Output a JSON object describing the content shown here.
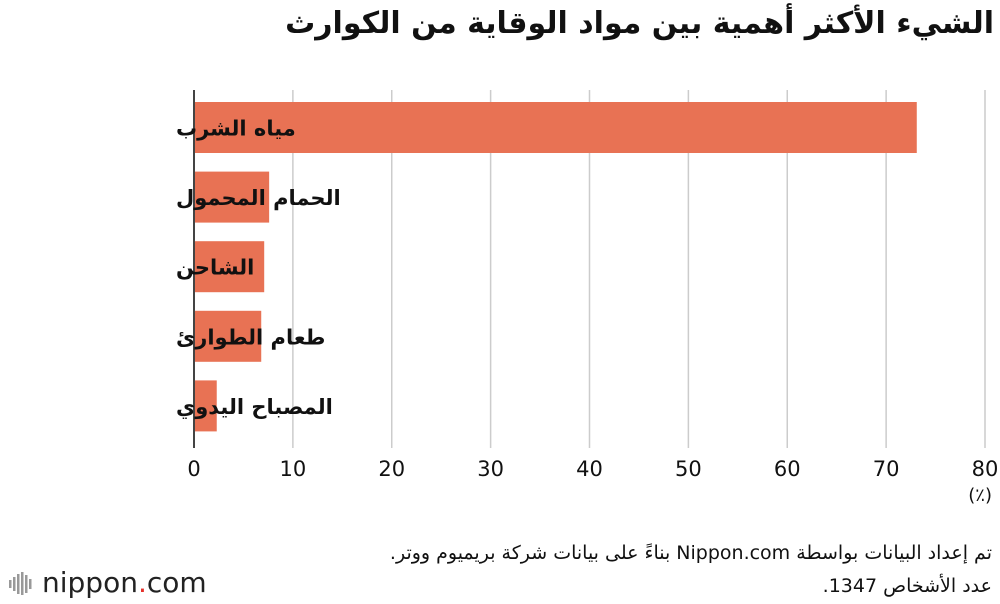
{
  "title": "الشيء الأكثر أهمية بين مواد الوقاية من الكوارث",
  "unit": "(٪)",
  "note_line1": "تم إعداد البيانات بواسطة Nippon.com بناءً على بيانات شركة بريميوم ووتر.",
  "note_line2": "عدد الأشخاص 1347.",
  "brand": {
    "name": "nippon",
    "dot": ".",
    "suffix": "com"
  },
  "colors": {
    "bar": "#E87254",
    "grid": "#cccccc"
  },
  "chart_data": {
    "type": "bar",
    "orientation": "horizontal",
    "categories": [
      "مياه الشرب",
      "الحمام المحمول",
      "الشاحن",
      "طعام الطوارئ",
      "المصباح اليدوي"
    ],
    "values": [
      73.1,
      7.6,
      7.1,
      6.8,
      2.3
    ],
    "xlim": [
      0,
      80
    ],
    "xticks": [
      "0",
      "10",
      "20",
      "30",
      "40",
      "50",
      "60",
      "70",
      "80"
    ],
    "grid": true
  }
}
